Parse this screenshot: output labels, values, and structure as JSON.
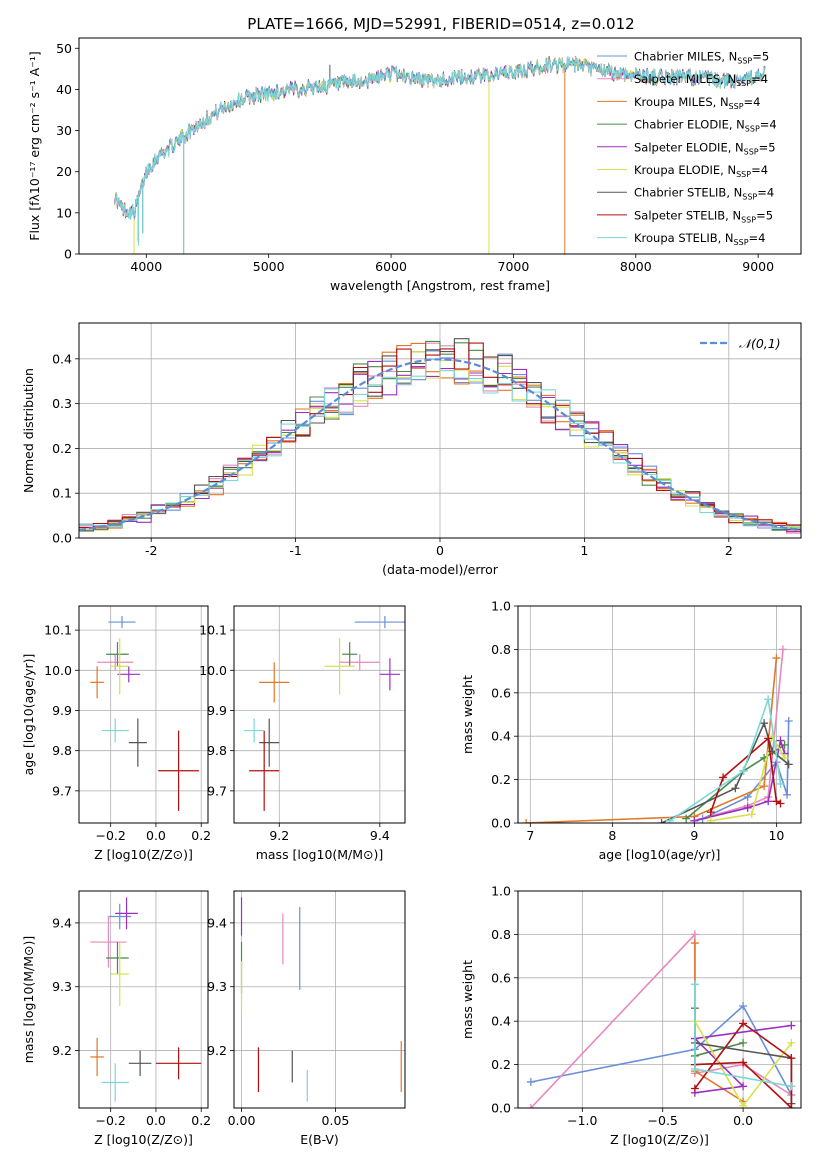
{
  "figure_title": "PLATE=1666, MJD=52991, FIBERID=0514, z=0.012",
  "colors": [
    "#6a8fd8",
    "#e888be",
    "#e07828",
    "#4a8a4a",
    "#9b30c0",
    "#d8e050",
    "#555555",
    "#b01010",
    "#7ad8d8"
  ],
  "chart_data": [
    {
      "id": "spectrum",
      "type": "line",
      "title": "PLATE=1666, MJD=52991, FIBERID=0514, z=0.012",
      "xlabel": "wavelength [Angstrom, rest frame]",
      "ylabel": "Flux [fλ10⁻¹⁷ erg cm⁻² s⁻¹ A⁻¹]",
      "xlim": [
        3450,
        9350
      ],
      "ylim": [
        0,
        52.5
      ],
      "xticks": [
        4000,
        5000,
        6000,
        7000,
        8000,
        9000
      ],
      "yticks": [
        0,
        10,
        20,
        30,
        40,
        50
      ],
      "grid": false,
      "legend_position": "upper right",
      "series": [
        {
          "name": "Chabrier MILES, N_SSP=5",
          "color_index": 0
        },
        {
          "name": "Salpeter MILES, N_SSP=4",
          "color_index": 1
        },
        {
          "name": "Kroupa MILES, N_SSP=4",
          "color_index": 2
        },
        {
          "name": "Chabrier ELODIE, N_SSP=4",
          "color_index": 3
        },
        {
          "name": "Salpeter ELODIE, N_SSP=5",
          "color_index": 4
        },
        {
          "name": "Kroupa ELODIE, N_SSP=4",
          "color_index": 5
        },
        {
          "name": "Chabrier STELIB, N_SSP=4",
          "color_index": 6
        },
        {
          "name": "Salpeter STELIB, N_SSP=5",
          "color_index": 7
        },
        {
          "name": "Kroupa STELIB, N_SSP=4",
          "color_index": 8
        }
      ],
      "continuum": [
        [
          3740,
          14
        ],
        [
          3800,
          11
        ],
        [
          3900,
          10
        ],
        [
          4000,
          20
        ],
        [
          4100,
          24
        ],
        [
          4200,
          26
        ],
        [
          4400,
          31
        ],
        [
          4600,
          35
        ],
        [
          4800,
          38
        ],
        [
          5000,
          39
        ],
        [
          5200,
          40
        ],
        [
          5500,
          41
        ],
        [
          5800,
          42
        ],
        [
          6000,
          44
        ],
        [
          6300,
          42
        ],
        [
          6600,
          43
        ],
        [
          7000,
          44
        ],
        [
          7300,
          46
        ],
        [
          7500,
          46
        ],
        [
          7800,
          44
        ],
        [
          8200,
          43
        ],
        [
          8500,
          43
        ],
        [
          8700,
          42
        ],
        [
          9000,
          43
        ],
        [
          9060,
          44
        ]
      ],
      "absorption_features": [
        [
          3935,
          3
        ],
        [
          3970,
          5
        ],
        [
          4305,
          0
        ],
        [
          5175,
          30
        ],
        [
          5893,
          36
        ],
        [
          6800,
          0
        ],
        [
          7420,
          0
        ]
      ]
    },
    {
      "id": "residuals",
      "type": "step-histogram",
      "xlabel": "(data-model)/error",
      "ylabel": "Normed distribution",
      "xlim": [
        -2.5,
        2.5
      ],
      "ylim": [
        0,
        0.48
      ],
      "xticks": [
        -2,
        -1,
        0,
        1,
        2
      ],
      "yticks": [
        0.0,
        0.1,
        0.2,
        0.3,
        0.4
      ],
      "grid": true,
      "legend_position": "upper right",
      "reference_curve": {
        "name": "𝒩(0,1)",
        "mean": 0,
        "sigma": 1,
        "color": "#5b8dd6"
      },
      "bin_width": 0.1
    },
    {
      "id": "age-vs-Z",
      "type": "errorbar",
      "xlabel": "Z [log10(Z/Z⊙)]",
      "ylabel": "age  [log10(age/yr)]",
      "xlim": [
        -0.34,
        0.23
      ],
      "ylim": [
        9.62,
        10.16
      ],
      "xticks": [
        -0.2,
        0.0,
        0.2
      ],
      "xtick_labels": [
        "−0.2",
        "0.0",
        "0.2"
      ],
      "yticks": [
        9.7,
        9.8,
        9.9,
        10.0,
        10.1
      ],
      "grid": true,
      "points": [
        {
          "c": 0,
          "x": -0.15,
          "y": 10.12,
          "xe": 0.06,
          "ye": 0.015
        },
        {
          "c": 1,
          "x": -0.18,
          "y": 10.02,
          "xe": 0.08,
          "ye": 0.02
        },
        {
          "c": 2,
          "x": -0.26,
          "y": 9.97,
          "xe": 0.03,
          "ye": 0.04
        },
        {
          "c": 3,
          "x": -0.17,
          "y": 10.04,
          "xe": 0.05,
          "ye": 0.03
        },
        {
          "c": 4,
          "x": -0.12,
          "y": 9.99,
          "xe": 0.05,
          "ye": 0.02
        },
        {
          "c": 5,
          "x": -0.16,
          "y": 10.01,
          "xe": 0.04,
          "ye": 0.07
        },
        {
          "c": 6,
          "x": -0.08,
          "y": 9.82,
          "xe": 0.04,
          "ye": 0.06
        },
        {
          "c": 7,
          "x": 0.1,
          "y": 9.75,
          "xe": 0.09,
          "ye": 0.1
        },
        {
          "c": 8,
          "x": -0.18,
          "y": 9.85,
          "xe": 0.06,
          "ye": 0.03
        }
      ]
    },
    {
      "id": "age-vs-mass",
      "type": "errorbar",
      "xlabel": "mass [log10(M/M⊙)]",
      "ylabel": "",
      "xlim": [
        9.11,
        9.45
      ],
      "ylim": [
        9.62,
        10.16
      ],
      "xticks": [
        9.2,
        9.4
      ],
      "yticks": [
        9.7,
        9.8,
        9.9,
        10.0,
        10.1
      ],
      "grid": true,
      "points": [
        {
          "c": 0,
          "x": 9.41,
          "y": 10.12,
          "xe": 0.06,
          "ye": 0.015
        },
        {
          "c": 1,
          "x": 9.36,
          "y": 10.02,
          "xe": 0.04,
          "ye": 0.02
        },
        {
          "c": 2,
          "x": 9.19,
          "y": 9.97,
          "xe": 0.03,
          "ye": 0.05
        },
        {
          "c": 3,
          "x": 9.34,
          "y": 10.04,
          "xe": 0.015,
          "ye": 0.03
        },
        {
          "c": 4,
          "x": 9.42,
          "y": 9.99,
          "xe": 0.02,
          "ye": 0.04
        },
        {
          "c": 5,
          "x": 9.32,
          "y": 10.01,
          "xe": 0.03,
          "ye": 0.07
        },
        {
          "c": 6,
          "x": 9.18,
          "y": 9.82,
          "xe": 0.02,
          "ye": 0.06
        },
        {
          "c": 7,
          "x": 9.17,
          "y": 9.75,
          "xe": 0.03,
          "ye": 0.1
        },
        {
          "c": 8,
          "x": 9.15,
          "y": 9.85,
          "xe": 0.02,
          "ye": 0.03
        }
      ]
    },
    {
      "id": "weight-vs-age",
      "type": "line",
      "xlabel": "age  [log10(age/yr)]",
      "ylabel": "mass weight",
      "xlim": [
        6.85,
        10.3
      ],
      "ylim": [
        0,
        1
      ],
      "xticks": [
        7,
        8,
        9,
        10
      ],
      "yticks": [
        0.0,
        0.2,
        0.4,
        0.6,
        0.8,
        1.0
      ],
      "grid": true,
      "series": [
        {
          "c": 0,
          "points": [
            [
              9.1,
              0.02
            ],
            [
              9.65,
              0.12
            ],
            [
              10.0,
              0.28
            ],
            [
              10.13,
              0.13
            ],
            [
              10.15,
              0.47
            ]
          ]
        },
        {
          "c": 1,
          "points": [
            [
              9.0,
              0.01
            ],
            [
              9.65,
              0.08
            ],
            [
              9.9,
              0.12
            ],
            [
              10.08,
              0.8
            ]
          ]
        },
        {
          "c": 2,
          "points": [
            [
              6.95,
              0.0
            ],
            [
              9.0,
              0.03
            ],
            [
              9.85,
              0.17
            ],
            [
              10.0,
              0.76
            ]
          ]
        },
        {
          "c": 3,
          "points": [
            [
              8.9,
              0.02
            ],
            [
              9.6,
              0.24
            ],
            [
              9.85,
              0.3
            ],
            [
              10.1,
              0.36
            ]
          ]
        },
        {
          "c": 4,
          "points": [
            [
              9.0,
              0.01
            ],
            [
              9.65,
              0.07
            ],
            [
              9.9,
              0.1
            ],
            [
              10.05,
              0.38
            ],
            [
              10.1,
              0.32
            ]
          ]
        },
        {
          "c": 5,
          "points": [
            [
              9.2,
              0.01
            ],
            [
              9.7,
              0.04
            ],
            [
              9.95,
              0.4
            ],
            [
              10.1,
              0.3
            ]
          ]
        },
        {
          "c": 6,
          "points": [
            [
              8.6,
              0.0
            ],
            [
              9.5,
              0.16
            ],
            [
              9.85,
              0.46
            ],
            [
              9.95,
              0.33
            ],
            [
              10.15,
              0.27
            ]
          ]
        },
        {
          "c": 7,
          "points": [
            [
              9.2,
              0.05
            ],
            [
              9.35,
              0.21
            ],
            [
              9.9,
              0.39
            ],
            [
              10.0,
              0.1
            ],
            [
              10.05,
              0.09
            ]
          ]
        },
        {
          "c": 8,
          "points": [
            [
              8.7,
              0.01
            ],
            [
              9.6,
              0.24
            ],
            [
              9.9,
              0.57
            ],
            [
              10.05,
              0.18
            ]
          ]
        }
      ]
    },
    {
      "id": "mass-vs-Z",
      "type": "errorbar",
      "xlabel": "Z [log10(Z/Z⊙)]",
      "ylabel": "mass [log10(M/M⊙)]",
      "xlim": [
        -0.34,
        0.23
      ],
      "ylim": [
        9.11,
        9.45
      ],
      "xticks": [
        -0.2,
        0.0,
        0.2
      ],
      "xtick_labels": [
        "−0.2",
        "0.0",
        "0.2"
      ],
      "yticks": [
        9.2,
        9.3,
        9.4
      ],
      "grid": true,
      "points": [
        {
          "c": 0,
          "x": -0.16,
          "y": 9.41,
          "xe": 0.05,
          "ye": 0.02
        },
        {
          "c": 1,
          "x": -0.21,
          "y": 9.37,
          "xe": 0.08,
          "ye": 0.04
        },
        {
          "c": 2,
          "x": -0.26,
          "y": 9.19,
          "xe": 0.03,
          "ye": 0.03
        },
        {
          "c": 3,
          "x": -0.17,
          "y": 9.345,
          "xe": 0.05,
          "ye": 0.025
        },
        {
          "c": 4,
          "x": -0.13,
          "y": 9.415,
          "xe": 0.05,
          "ye": 0.025
        },
        {
          "c": 5,
          "x": -0.16,
          "y": 9.32,
          "xe": 0.04,
          "ye": 0.05
        },
        {
          "c": 6,
          "x": -0.07,
          "y": 9.18,
          "xe": 0.05,
          "ye": 0.02
        },
        {
          "c": 7,
          "x": 0.1,
          "y": 9.18,
          "xe": 0.1,
          "ye": 0.025
        },
        {
          "c": 8,
          "x": -0.18,
          "y": 9.15,
          "xe": 0.06,
          "ye": 0.03
        }
      ]
    },
    {
      "id": "mass-vs-EBV",
      "type": "errorbar",
      "xlabel": "E(B-V)",
      "ylabel": "",
      "xlim": [
        -0.004,
        0.087
      ],
      "ylim": [
        9.11,
        9.45
      ],
      "xticks": [
        0.0,
        0.05
      ],
      "xtick_labels": [
        "0.00",
        "0.05"
      ],
      "yticks": [
        9.2,
        9.3,
        9.4
      ],
      "grid": true,
      "points": [
        {
          "c": 0,
          "x": 0.031,
          "y": 9.36,
          "xe": 0,
          "ye": 0.065
        },
        {
          "c": 1,
          "x": 0.022,
          "y": 9.375,
          "xe": 0,
          "ye": 0.04
        },
        {
          "c": 2,
          "x": 0.085,
          "y": 9.175,
          "xe": 0,
          "ye": 0.04
        },
        {
          "c": 3,
          "x": 0.0,
          "y": 9.33,
          "xe": 0,
          "ye": 0.04
        },
        {
          "c": 4,
          "x": 0.0,
          "y": 9.41,
          "xe": 0,
          "ye": 0.03
        },
        {
          "c": 5,
          "x": 0.0,
          "y": 9.3,
          "xe": 0,
          "ye": 0.04
        },
        {
          "c": 6,
          "x": 0.027,
          "y": 9.175,
          "xe": 0,
          "ye": 0.025
        },
        {
          "c": 7,
          "x": 0.009,
          "y": 9.17,
          "xe": 0,
          "ye": 0.035
        },
        {
          "c": 8,
          "x": 0.035,
          "y": 9.145,
          "xe": 0,
          "ye": 0.025
        }
      ]
    },
    {
      "id": "weight-vs-Z",
      "type": "line",
      "xlabel": "Z [log10(Z/Z⊙)]",
      "ylabel": "mass weight",
      "xlim": [
        -1.4,
        0.36
      ],
      "ylim": [
        0,
        1
      ],
      "xticks": [
        -1.0,
        -0.5,
        0.0
      ],
      "xtick_labels": [
        "−1.0",
        "−0.5",
        "0.0"
      ],
      "yticks": [
        0.0,
        0.2,
        0.4,
        0.6,
        0.8,
        1.0
      ],
      "grid": true,
      "series": [
        {
          "c": 0,
          "points": [
            [
              -1.32,
              0.12
            ],
            [
              -0.3,
              0.27
            ],
            [
              0.0,
              0.47
            ],
            [
              0.3,
              0.06
            ]
          ]
        },
        {
          "c": 1,
          "points": [
            [
              -1.32,
              0.0
            ],
            [
              -0.3,
              0.8
            ],
            [
              -0.3,
              0.16
            ],
            [
              0.0,
              0.2
            ],
            [
              0.3,
              0.06
            ]
          ]
        },
        {
          "c": 2,
          "points": [
            [
              -0.3,
              0.76
            ],
            [
              -0.3,
              0.17
            ],
            [
              0.0,
              0.03
            ]
          ]
        },
        {
          "c": 3,
          "points": [
            [
              -0.3,
              0.46
            ],
            [
              -0.3,
              0.24
            ],
            [
              0.0,
              0.3
            ]
          ]
        },
        {
          "c": 4,
          "points": [
            [
              -0.3,
              0.07
            ],
            [
              0.0,
              0.1
            ],
            [
              -0.3,
              0.32
            ],
            [
              0.3,
              0.38
            ]
          ]
        },
        {
          "c": 5,
          "points": [
            [
              -0.3,
              0.4
            ],
            [
              0.0,
              0.01
            ],
            [
              0.3,
              0.3
            ]
          ]
        },
        {
          "c": 6,
          "points": [
            [
              -0.3,
              0.3
            ],
            [
              0.3,
              0.23
            ],
            [
              0.3,
              0.02
            ]
          ]
        },
        {
          "c": 7,
          "points": [
            [
              -0.3,
              0.09
            ],
            [
              0.0,
              0.39
            ],
            [
              0.3,
              0.23
            ],
            [
              0.3,
              0.0
            ],
            [
              0.0,
              0.21
            ],
            [
              -0.3,
              0.2
            ]
          ]
        },
        {
          "c": 8,
          "points": [
            [
              -0.3,
              0.57
            ],
            [
              -0.3,
              0.18
            ],
            [
              0.3,
              0.1
            ]
          ]
        }
      ]
    }
  ]
}
